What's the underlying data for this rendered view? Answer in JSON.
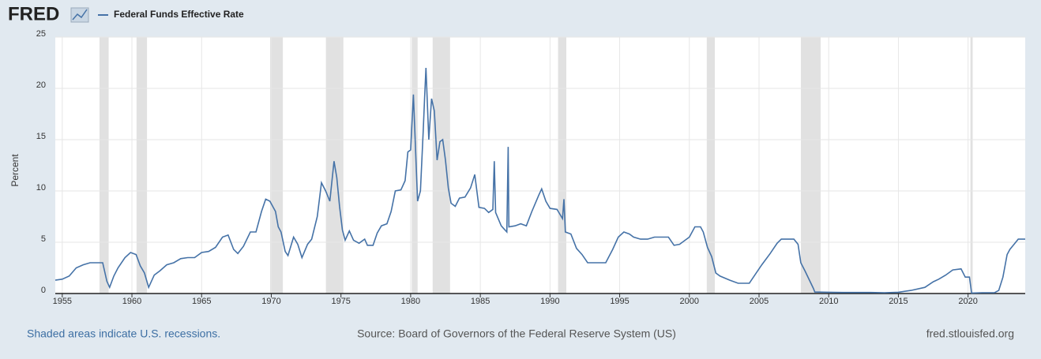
{
  "header": {
    "logo": "FRED"
  },
  "footer": {
    "note": "Shaded areas indicate U.S. recessions.",
    "source": "Source: Board of Governors of the Federal Reserve System (US)",
    "url": "fred.stlouisfed.org"
  },
  "chart_data": {
    "type": "line",
    "y_label": "Percent",
    "grid": true,
    "xlim": [
      1954.5,
      2024.1
    ],
    "xticks": [
      1955,
      1960,
      1965,
      1970,
      1975,
      1980,
      1985,
      1990,
      1995,
      2000,
      2005,
      2010,
      2015,
      2020
    ],
    "ylim": [
      0,
      25
    ],
    "yticks": [
      0,
      5,
      10,
      15,
      20,
      25
    ],
    "recessions": [
      [
        1957.67,
        1958.33
      ],
      [
        1960.33,
        1961.08
      ],
      [
        1969.92,
        1970.83
      ],
      [
        1973.92,
        1975.17
      ],
      [
        1980.08,
        1980.5
      ],
      [
        1981.58,
        1982.83
      ],
      [
        1990.58,
        1991.17
      ],
      [
        2001.25,
        2001.83
      ],
      [
        2008.0,
        2009.42
      ],
      [
        2020.17,
        2020.33
      ]
    ],
    "recession_color": "#e1e1e1",
    "x": [
      1954.5,
      1955.0,
      1955.5,
      1956.0,
      1956.5,
      1957.0,
      1957.5,
      1957.9,
      1958.2,
      1958.4,
      1958.7,
      1959.0,
      1959.5,
      1959.9,
      1960.3,
      1960.6,
      1960.9,
      1961.2,
      1961.6,
      1962.0,
      1962.5,
      1963.0,
      1963.5,
      1964.0,
      1964.5,
      1965.0,
      1965.5,
      1966.0,
      1966.5,
      1966.9,
      1967.3,
      1967.6,
      1968.0,
      1968.5,
      1968.9,
      1969.3,
      1969.6,
      1969.9,
      1970.3,
      1970.5,
      1970.7,
      1971.0,
      1971.2,
      1971.6,
      1971.9,
      1972.2,
      1972.6,
      1972.9,
      1973.3,
      1973.6,
      1973.9,
      1974.2,
      1974.5,
      1974.7,
      1974.9,
      1975.1,
      1975.3,
      1975.6,
      1975.9,
      1976.3,
      1976.7,
      1976.9,
      1977.3,
      1977.6,
      1977.9,
      1978.3,
      1978.6,
      1978.9,
      1979.3,
      1979.6,
      1979.8,
      1980.0,
      1980.2,
      1980.5,
      1980.7,
      1980.9,
      1981.0,
      1981.1,
      1981.3,
      1981.5,
      1981.7,
      1981.9,
      1982.1,
      1982.3,
      1982.5,
      1982.7,
      1982.9,
      1983.2,
      1983.5,
      1983.9,
      1984.3,
      1984.6,
      1984.9,
      1985.3,
      1985.6,
      1985.9,
      1986.0,
      1986.1,
      1986.5,
      1986.9,
      1987.0,
      1987.05,
      1987.5,
      1987.9,
      1988.3,
      1988.7,
      1989.2,
      1989.4,
      1989.7,
      1990.0,
      1990.5,
      1990.9,
      1991.0,
      1991.1,
      1991.5,
      1991.9,
      1992.3,
      1992.7,
      1993.5,
      1994.0,
      1994.5,
      1994.9,
      1995.3,
      1995.7,
      1996.0,
      1996.5,
      1997.0,
      1997.5,
      1998.0,
      1998.5,
      1998.9,
      1999.3,
      1999.7,
      2000.0,
      2000.4,
      2000.8,
      2001.0,
      2001.3,
      2001.6,
      2001.9,
      2002.2,
      2002.9,
      2003.5,
      2004.3,
      2004.7,
      2005.2,
      2005.8,
      2006.3,
      2006.6,
      2007.5,
      2007.8,
      2008.0,
      2008.3,
      2008.9,
      2009.0,
      2010.0,
      2011.0,
      2012.0,
      2013.0,
      2014.0,
      2015.0,
      2015.9,
      2016.9,
      2017.5,
      2017.9,
      2018.4,
      2018.9,
      2019.5,
      2019.8,
      2020.1,
      2020.25,
      2021.0,
      2021.9,
      2022.2,
      2022.5,
      2022.8,
      2023.0,
      2023.3,
      2023.6,
      2024.1
    ],
    "series": [
      {
        "name": "Federal Funds Effective Rate",
        "color": "#4572a7",
        "values": [
          1.3,
          1.4,
          1.7,
          2.5,
          2.8,
          3.0,
          3.0,
          3.0,
          1.2,
          0.6,
          1.7,
          2.5,
          3.5,
          4.0,
          3.8,
          2.7,
          2.0,
          0.6,
          1.8,
          2.2,
          2.8,
          3.0,
          3.4,
          3.5,
          3.5,
          4.0,
          4.1,
          4.5,
          5.5,
          5.7,
          4.3,
          3.9,
          4.6,
          6.0,
          6.0,
          8.0,
          9.2,
          9.0,
          8.0,
          6.5,
          6.0,
          4.1,
          3.7,
          5.5,
          4.8,
          3.5,
          4.8,
          5.3,
          7.5,
          10.8,
          10.0,
          9.0,
          12.9,
          11.3,
          8.5,
          6.2,
          5.2,
          6.1,
          5.2,
          4.9,
          5.3,
          4.7,
          4.7,
          5.9,
          6.6,
          6.8,
          8.0,
          10.0,
          10.1,
          11.0,
          13.8,
          14.0,
          19.4,
          9.0,
          10.0,
          15.8,
          19.1,
          22.0,
          15.0,
          19.0,
          17.8,
          13.0,
          14.8,
          15.0,
          13.0,
          10.3,
          8.8,
          8.5,
          9.3,
          9.4,
          10.3,
          11.6,
          8.4,
          8.3,
          7.9,
          8.2,
          12.9,
          7.9,
          6.6,
          6.0,
          14.3,
          6.5,
          6.6,
          6.8,
          6.6,
          8.0,
          9.6,
          10.2,
          9.0,
          8.3,
          8.2,
          7.3,
          9.2,
          6.0,
          5.8,
          4.4,
          3.8,
          3.0,
          3.0,
          3.0,
          4.3,
          5.5,
          6.0,
          5.8,
          5.5,
          5.3,
          5.3,
          5.5,
          5.5,
          5.5,
          4.7,
          4.8,
          5.2,
          5.5,
          6.5,
          6.5,
          6.0,
          4.5,
          3.6,
          2.0,
          1.7,
          1.3,
          1.0,
          1.0,
          1.8,
          2.8,
          3.9,
          4.9,
          5.3,
          5.3,
          4.8,
          3.0,
          2.2,
          0.5,
          0.15,
          0.12,
          0.1,
          0.1,
          0.1,
          0.08,
          0.12,
          0.3,
          0.6,
          1.15,
          1.4,
          1.8,
          2.3,
          2.4,
          1.6,
          1.6,
          0.05,
          0.08,
          0.08,
          0.3,
          1.6,
          3.8,
          4.3,
          4.8,
          5.3,
          5.3
        ]
      }
    ]
  }
}
